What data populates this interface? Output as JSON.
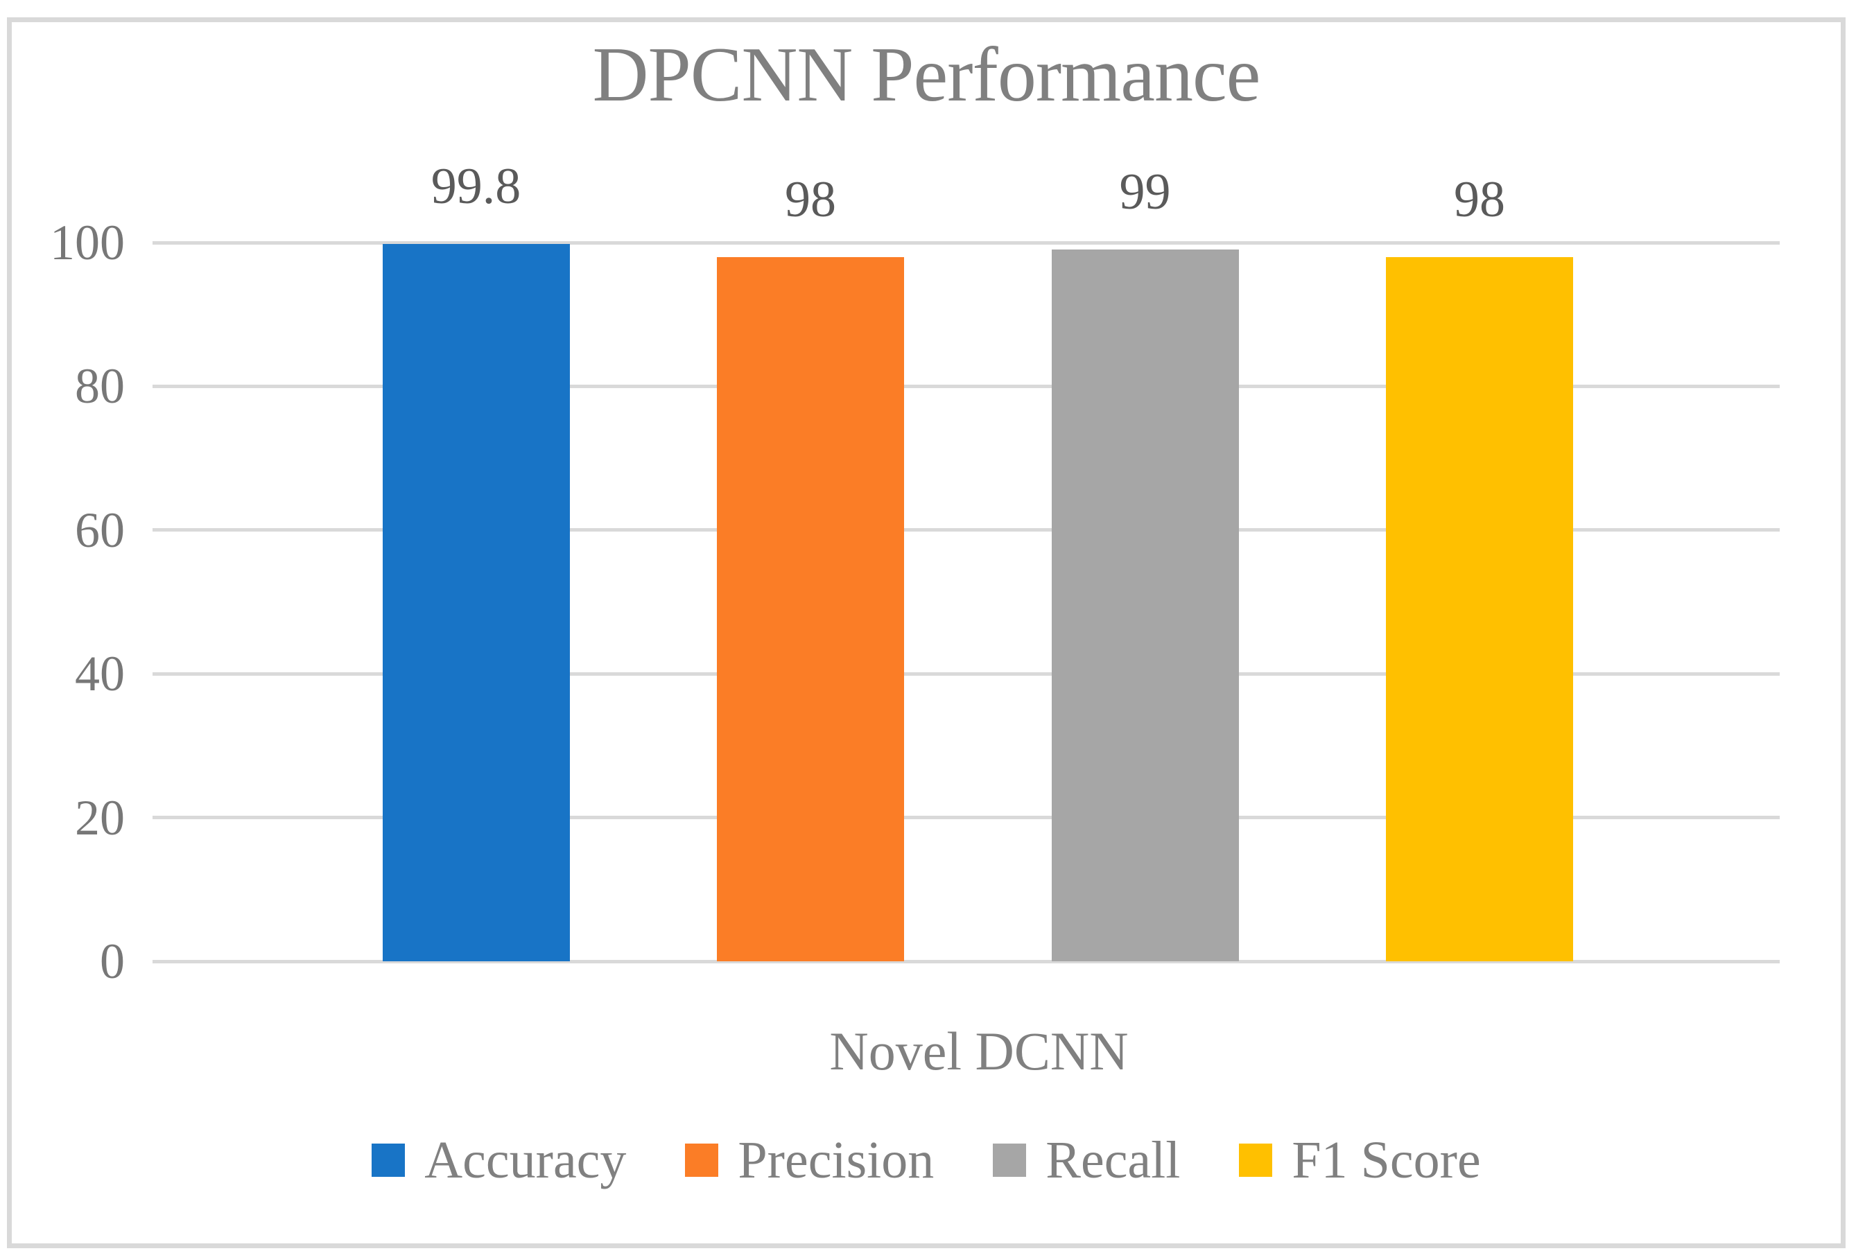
{
  "chart_data": {
    "type": "bar",
    "title": "DPCNN Performance",
    "categories": [
      "Novel DCNN"
    ],
    "series": [
      {
        "name": "Accuracy",
        "value": 99.8,
        "data_label": "99.8",
        "color": "#1874C6"
      },
      {
        "name": "Precision",
        "value": 98,
        "data_label": "98",
        "color": "#FB7D26"
      },
      {
        "name": "Recall",
        "value": 99,
        "data_label": "99",
        "color": "#A6A6A6"
      },
      {
        "name": "F1 Score",
        "value": 98,
        "data_label": "98",
        "color": "#FFC000"
      }
    ],
    "y_axis": {
      "min": 0,
      "max": 100,
      "ticks": [
        0,
        20,
        40,
        60,
        80,
        100
      ],
      "tick_labels": [
        "0",
        "20",
        "40",
        "60",
        "80",
        "100"
      ]
    },
    "xlabel": "",
    "ylabel": "",
    "grid": true,
    "legend_position": "bottom",
    "data_labels_shown": true
  },
  "colors": {
    "accent_blue": "#1874C6",
    "accent_orange": "#FB7D26",
    "accent_gray": "#A6A6A6",
    "accent_gold": "#FFC000",
    "gridline": "#D9D9D9",
    "frame_border": "#D9D9D9",
    "title_text": "#808080",
    "axis_text": "#777777",
    "data_label_text": "#5A5A5A",
    "legend_text": "#808080",
    "background": "#FFFFFF"
  }
}
